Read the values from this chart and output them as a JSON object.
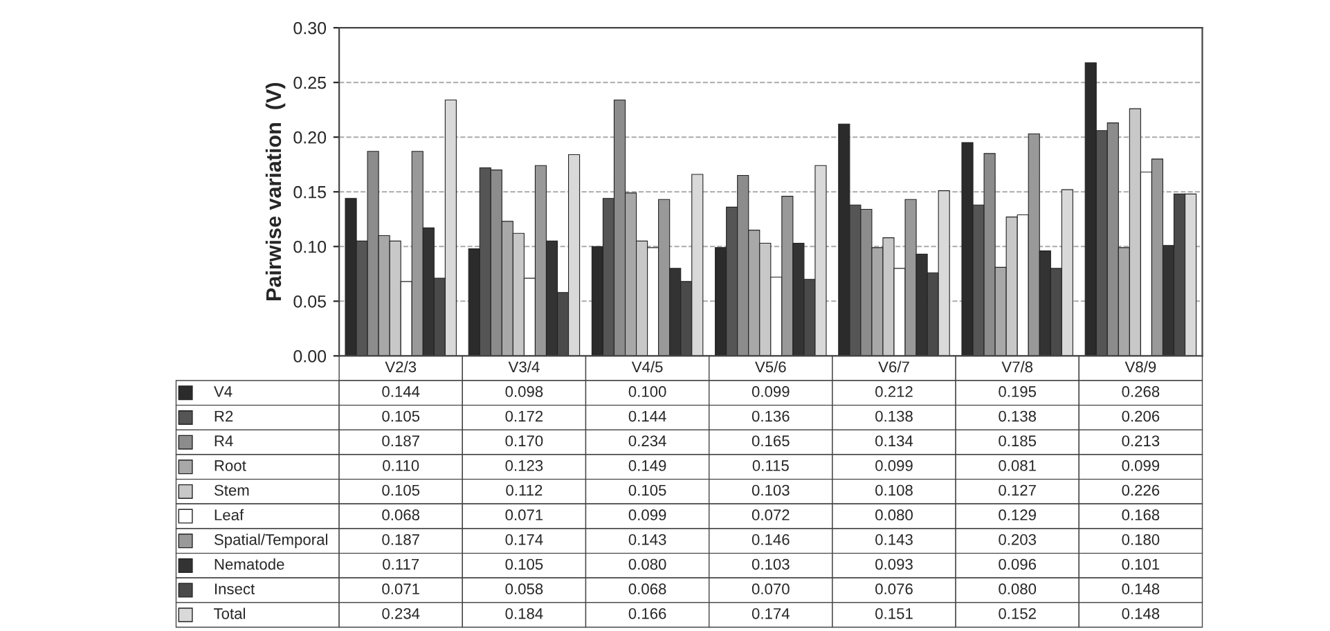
{
  "chart_data": {
    "type": "bar",
    "ylabel": "Pairwise variation  (V)",
    "categories": [
      "V2/3",
      "V3/4",
      "V4/5",
      "V5/6",
      "V6/7",
      "V7/8",
      "V8/9"
    ],
    "series": [
      {
        "name": "V4",
        "color": "#2b2b2b",
        "values": [
          0.144,
          0.098,
          0.1,
          0.099,
          0.212,
          0.195,
          0.268
        ],
        "value_labels": [
          "0.144",
          "0.098",
          "0.100",
          "0.099",
          "0.212",
          "0.195",
          "0.268"
        ]
      },
      {
        "name": "R2",
        "color": "#555555",
        "values": [
          0.105,
          0.172,
          0.144,
          0.136,
          0.138,
          0.138,
          0.206
        ],
        "value_labels": [
          "0.105",
          "0.172",
          "0.144",
          "0.136",
          "0.138",
          "0.138",
          "0.206"
        ]
      },
      {
        "name": "R4",
        "color": "#8c8c8c",
        "values": [
          0.187,
          0.17,
          0.234,
          0.165,
          0.134,
          0.185,
          0.213
        ],
        "value_labels": [
          "0.187",
          "0.170",
          "0.234",
          "0.165",
          "0.134",
          "0.185",
          "0.213"
        ]
      },
      {
        "name": "Root",
        "color": "#a8a8a8",
        "values": [
          0.11,
          0.123,
          0.149,
          0.115,
          0.099,
          0.081,
          0.099
        ],
        "value_labels": [
          "0.110",
          "0.123",
          "0.149",
          "0.115",
          "0.099",
          "0.081",
          "0.099"
        ]
      },
      {
        "name": "Stem",
        "color": "#c8c8c8",
        "values": [
          0.105,
          0.112,
          0.105,
          0.103,
          0.108,
          0.127,
          0.226
        ],
        "value_labels": [
          "0.105",
          "0.112",
          "0.105",
          "0.103",
          "0.108",
          "0.127",
          "0.226"
        ]
      },
      {
        "name": "Leaf",
        "color": "#ffffff",
        "values": [
          0.068,
          0.071,
          0.099,
          0.072,
          0.08,
          0.129,
          0.168
        ],
        "value_labels": [
          "0.068",
          "0.071",
          "0.099",
          "0.072",
          "0.080",
          "0.129",
          "0.168"
        ]
      },
      {
        "name": "Spatial/Temporal",
        "color": "#999999",
        "values": [
          0.187,
          0.174,
          0.143,
          0.146,
          0.143,
          0.203,
          0.18
        ],
        "value_labels": [
          "0.187",
          "0.174",
          "0.143",
          "0.146",
          "0.143",
          "0.203",
          "0.180"
        ]
      },
      {
        "name": "Nematode",
        "color": "#333333",
        "values": [
          0.117,
          0.105,
          0.08,
          0.103,
          0.093,
          0.096,
          0.101
        ],
        "value_labels": [
          "0.117",
          "0.105",
          "0.080",
          "0.103",
          "0.093",
          "0.096",
          "0.101"
        ]
      },
      {
        "name": "Insect",
        "color": "#4a4a4a",
        "values": [
          0.071,
          0.058,
          0.068,
          0.07,
          0.076,
          0.08,
          0.148
        ],
        "value_labels": [
          "0.071",
          "0.058",
          "0.068",
          "0.070",
          "0.076",
          "0.080",
          "0.148"
        ]
      },
      {
        "name": "Total",
        "color": "#d9d9d9",
        "values": [
          0.234,
          0.184,
          0.166,
          0.174,
          0.151,
          0.152,
          0.148
        ],
        "value_labels": [
          "0.234",
          "0.184",
          "0.166",
          "0.174",
          "0.151",
          "0.152",
          "0.148"
        ]
      }
    ],
    "ylim": [
      0,
      0.3
    ],
    "yticks": [
      {
        "value": 0,
        "label": "0.00"
      },
      {
        "value": 0.05,
        "label": "0.05"
      },
      {
        "value": 0.1,
        "label": "0.10"
      },
      {
        "value": 0.15,
        "label": "0.15"
      },
      {
        "value": 0.2,
        "label": "0.20"
      },
      {
        "value": 0.25,
        "label": "0.25"
      },
      {
        "value": 0.3,
        "label": "0.30"
      }
    ],
    "grid": "y",
    "tick_labels": "y",
    "legend": "bottom left"
  }
}
